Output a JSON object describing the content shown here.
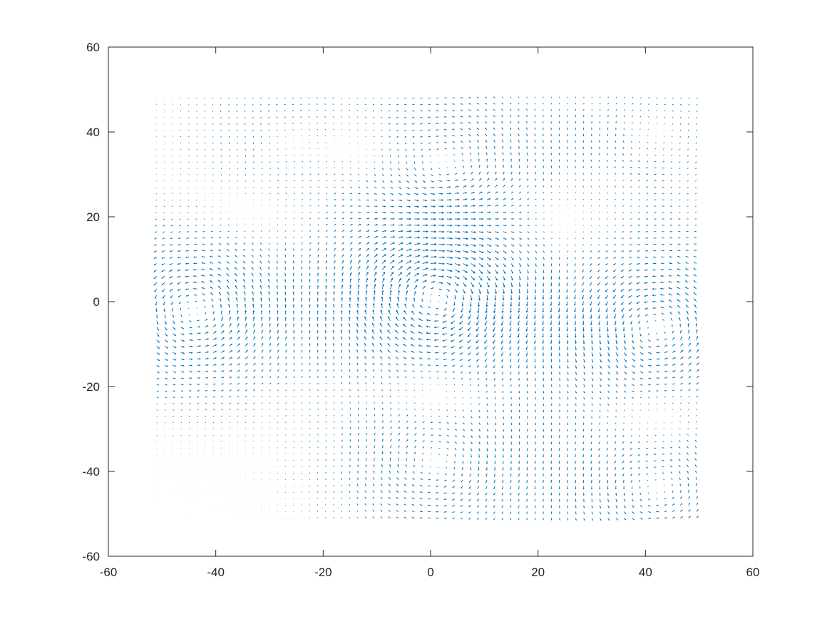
{
  "chart_data": {
    "type": "quiver",
    "title": "",
    "xlabel": "",
    "ylabel": "",
    "xlim": [
      -60,
      60
    ],
    "ylim": [
      -60,
      60
    ],
    "xticks": [
      -60,
      -40,
      -20,
      0,
      20,
      40,
      60
    ],
    "yticks": [
      -60,
      -40,
      -20,
      0,
      20,
      40,
      60
    ],
    "xtick_labels": [
      "-60",
      "-40",
      "-20",
      "0",
      "20",
      "40",
      "60"
    ],
    "ytick_labels": [
      "-60",
      "-40",
      "-20",
      "0",
      "20",
      "40",
      "60"
    ],
    "grid": false,
    "box": true,
    "arrow_color": "#0072bd",
    "field_extent": {
      "x": [
        -51,
        50
      ],
      "y": [
        -51,
        48
      ]
    },
    "vortices": [
      {
        "x": -44,
        "y": -2,
        "strength": 1.0
      },
      {
        "x": 1,
        "y": 1,
        "strength": -1.3
      },
      {
        "x": 42,
        "y": -6,
        "strength": 1.0
      },
      {
        "x": 3,
        "y": 32,
        "strength": 0.7
      },
      {
        "x": 1,
        "y": -38,
        "strength": -0.7
      },
      {
        "x": 42,
        "y": -44,
        "strength": 0.7
      },
      {
        "x": -27,
        "y": 38,
        "strength": 0.4
      },
      {
        "x": 42,
        "y": 40,
        "strength": -0.4
      }
    ]
  }
}
